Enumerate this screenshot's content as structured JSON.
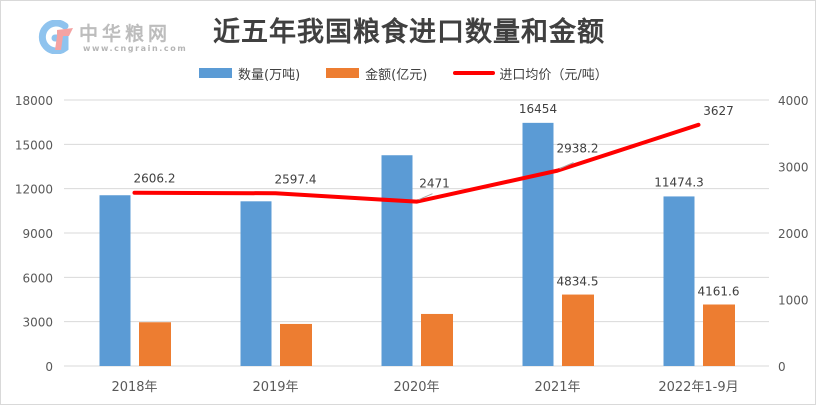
{
  "logo": {
    "name": "中华粮网",
    "url": "www.cngrain.com"
  },
  "chart_data": {
    "type": "bar",
    "title": "近五年我国粮食进口数量和金额",
    "categories": [
      "2018年",
      "2019年",
      "2020年",
      "2021年",
      "2022年1-9月"
    ],
    "series": [
      {
        "name": "数量(万吨)",
        "type": "bar",
        "axis": "left",
        "color": "#5b9bd5",
        "values": [
          11555,
          11144,
          14262,
          16454,
          11474.3
        ],
        "labels": [
          "",
          "",
          "",
          "16454",
          "11474.3"
        ]
      },
      {
        "name": "金额(亿元)",
        "type": "bar",
        "axis": "left",
        "color": "#ed7d31",
        "values": [
          2960,
          2846,
          3522,
          4834.5,
          4161.6
        ],
        "labels": [
          "",
          "",
          "",
          "4834.5",
          "4161.6"
        ]
      },
      {
        "name": "进口均价（元/吨）",
        "type": "line",
        "axis": "right",
        "color": "#ff0000",
        "values": [
          2606.2,
          2597.4,
          2471,
          2938.2,
          3627
        ],
        "labels": [
          "2606.2",
          "2597.4",
          "2471",
          "2938.2",
          "3627"
        ]
      }
    ],
    "xlabel": "",
    "ylabel": "",
    "left_axis": {
      "min": 0,
      "max": 18000,
      "ticks": [
        0,
        3000,
        6000,
        9000,
        12000,
        15000,
        18000
      ]
    },
    "right_axis": {
      "min": 0,
      "max": 4000,
      "ticks": [
        0,
        1000,
        2000,
        3000,
        4000
      ]
    },
    "grid": true,
    "legend_position": "top"
  }
}
